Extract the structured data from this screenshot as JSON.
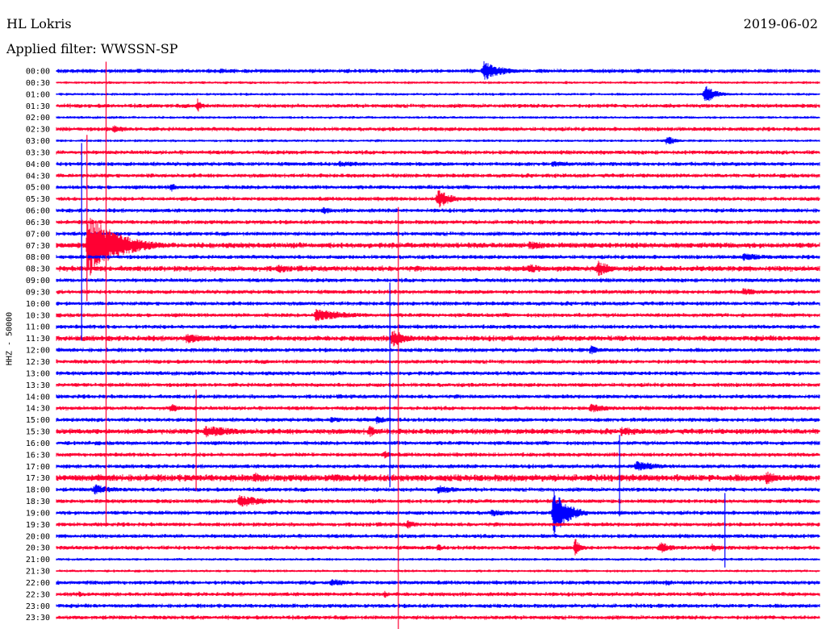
{
  "header": {
    "station": "HL Lokris",
    "date": "2019-06-02",
    "filter": "Applied filter: WWSSN-SP"
  },
  "colors": {
    "blue": "#0000ff",
    "red": "#ff0033",
    "background": "#ffffff"
  },
  "chart_data": {
    "type": "line",
    "title": "",
    "ylabel": "HHZ - 50000",
    "xlabel": "",
    "row_labels": [
      "00:00",
      "00:30",
      "01:00",
      "01:30",
      "02:00",
      "02:30",
      "03:00",
      "03:30",
      "04:00",
      "04:30",
      "05:00",
      "05:30",
      "06:00",
      "06:30",
      "07:00",
      "07:30",
      "08:00",
      "08:30",
      "09:00",
      "09:30",
      "10:00",
      "10:30",
      "11:00",
      "11:30",
      "12:00",
      "12:30",
      "13:00",
      "13:30",
      "14:00",
      "14:30",
      "15:00",
      "15:30",
      "16:00",
      "16:30",
      "17:00",
      "17:30",
      "18:00",
      "18:30",
      "19:00",
      "19:30",
      "20:00",
      "20:30",
      "21:00",
      "21:30",
      "22:00",
      "22:30",
      "23:00",
      "23:30"
    ],
    "row_colors": [
      "blue",
      "red"
    ],
    "noise": [
      3,
      2,
      2,
      3,
      2,
      3,
      2,
      3,
      3,
      3,
      3,
      3,
      3,
      3,
      3,
      4,
      3,
      4,
      3,
      3,
      3,
      3,
      3,
      4,
      3,
      3,
      3,
      3,
      3,
      3,
      3,
      4,
      3,
      3,
      3,
      5,
      3,
      3,
      3,
      3,
      3,
      3,
      2,
      2,
      3,
      3,
      3,
      3
    ],
    "events": [
      {
        "row": 0,
        "t": 0.035,
        "amp": 3,
        "dur": 0.03
      },
      {
        "row": 0,
        "t": 0.215,
        "amp": 4,
        "dur": 0.015
      },
      {
        "row": 0,
        "t": 0.56,
        "amp": 13,
        "dur": 0.025
      },
      {
        "row": 2,
        "t": 0.85,
        "amp": 12,
        "dur": 0.015
      },
      {
        "row": 3,
        "t": 0.185,
        "amp": 9,
        "dur": 0.008
      },
      {
        "row": 5,
        "t": 0.075,
        "amp": 5,
        "dur": 0.03
      },
      {
        "row": 6,
        "t": 0.8,
        "amp": 6,
        "dur": 0.015
      },
      {
        "row": 8,
        "t": 0.37,
        "amp": 4,
        "dur": 0.05
      },
      {
        "row": 8,
        "t": 0.65,
        "amp": 4,
        "dur": 0.04
      },
      {
        "row": 9,
        "t": 0.77,
        "amp": 3,
        "dur": 0.03
      },
      {
        "row": 10,
        "t": 0.15,
        "amp": 6,
        "dur": 0.01
      },
      {
        "row": 11,
        "t": 0.5,
        "amp": 12,
        "dur": 0.02
      },
      {
        "row": 12,
        "t": 0.35,
        "amp": 5,
        "dur": 0.015
      },
      {
        "row": 15,
        "t": 0.042,
        "amp": 40,
        "dur": 0.04
      },
      {
        "row": 15,
        "t": 0.62,
        "amp": 6,
        "dur": 0.04
      },
      {
        "row": 16,
        "t": 0.9,
        "amp": 5,
        "dur": 0.05
      },
      {
        "row": 17,
        "t": 0.29,
        "amp": 6,
        "dur": 0.03
      },
      {
        "row": 17,
        "t": 0.62,
        "amp": 6,
        "dur": 0.03
      },
      {
        "row": 17,
        "t": 0.71,
        "amp": 10,
        "dur": 0.02
      },
      {
        "row": 19,
        "t": 0.9,
        "amp": 5,
        "dur": 0.03
      },
      {
        "row": 21,
        "t": 0.34,
        "amp": 8,
        "dur": 0.05
      },
      {
        "row": 23,
        "t": 0.17,
        "amp": 7,
        "dur": 0.035
      },
      {
        "row": 23,
        "t": 0.44,
        "amp": 12,
        "dur": 0.02
      },
      {
        "row": 24,
        "t": 0.7,
        "amp": 6,
        "dur": 0.015
      },
      {
        "row": 29,
        "t": 0.15,
        "amp": 6,
        "dur": 0.015
      },
      {
        "row": 29,
        "t": 0.7,
        "amp": 6,
        "dur": 0.03
      },
      {
        "row": 30,
        "t": 0.36,
        "amp": 4,
        "dur": 0.03
      },
      {
        "row": 30,
        "t": 0.42,
        "amp": 6,
        "dur": 0.015
      },
      {
        "row": 31,
        "t": 0.195,
        "amp": 8,
        "dur": 0.05
      },
      {
        "row": 31,
        "t": 0.41,
        "amp": 8,
        "dur": 0.015
      },
      {
        "row": 31,
        "t": 0.74,
        "amp": 6,
        "dur": 0.04
      },
      {
        "row": 33,
        "t": 0.43,
        "amp": 6,
        "dur": 0.01
      },
      {
        "row": 34,
        "t": 0.76,
        "amp": 8,
        "dur": 0.03
      },
      {
        "row": 35,
        "t": 0.26,
        "amp": 7,
        "dur": 0.02
      },
      {
        "row": 35,
        "t": 0.36,
        "amp": 5,
        "dur": 0.06
      },
      {
        "row": 35,
        "t": 0.93,
        "amp": 9,
        "dur": 0.02
      },
      {
        "row": 36,
        "t": 0.05,
        "amp": 7,
        "dur": 0.03
      },
      {
        "row": 36,
        "t": 0.5,
        "amp": 6,
        "dur": 0.03
      },
      {
        "row": 37,
        "t": 0.24,
        "amp": 8,
        "dur": 0.04
      },
      {
        "row": 38,
        "t": 0.57,
        "amp": 5,
        "dur": 0.03
      },
      {
        "row": 38,
        "t": 0.652,
        "amp": 28,
        "dur": 0.02
      },
      {
        "row": 39,
        "t": 0.46,
        "amp": 6,
        "dur": 0.015
      },
      {
        "row": 40,
        "t": 0.96,
        "amp": 3,
        "dur": 0.03
      },
      {
        "row": 41,
        "t": 0.5,
        "amp": 5,
        "dur": 0.01
      },
      {
        "row": 41,
        "t": 0.68,
        "amp": 12,
        "dur": 0.008
      },
      {
        "row": 41,
        "t": 0.79,
        "amp": 8,
        "dur": 0.02
      },
      {
        "row": 41,
        "t": 0.86,
        "amp": 6,
        "dur": 0.015
      },
      {
        "row": 44,
        "t": 0.36,
        "amp": 5,
        "dur": 0.03
      },
      {
        "row": 44,
        "t": 0.8,
        "amp": 5,
        "dur": 0.01
      },
      {
        "row": 45,
        "t": 0.03,
        "amp": 4,
        "dur": 0.01
      },
      {
        "row": 45,
        "t": 0.43,
        "amp": 5,
        "dur": 0.008
      }
    ],
    "spikes": [
      {
        "t": 0.065,
        "row_from": -0.8,
        "row_to": 39.2,
        "color": "red"
      },
      {
        "t": 0.04,
        "row_from": 5.5,
        "row_to": 19.8,
        "color": "red"
      },
      {
        "t": 0.033,
        "row_from": 6.2,
        "row_to": 23.2,
        "color": "blue"
      },
      {
        "t": 0.183,
        "row_from": 27.4,
        "row_to": 36.1,
        "color": "red"
      },
      {
        "t": 0.448,
        "row_from": 11.7,
        "row_to": 48.2,
        "color": "red"
      },
      {
        "t": 0.437,
        "row_from": 18.2,
        "row_to": 35.8,
        "color": "blue"
      },
      {
        "t": 0.738,
        "row_from": 31.3,
        "row_to": 38.3,
        "color": "blue"
      },
      {
        "t": 0.876,
        "row_from": 36.3,
        "row_to": 42.7,
        "color": "blue"
      }
    ]
  }
}
